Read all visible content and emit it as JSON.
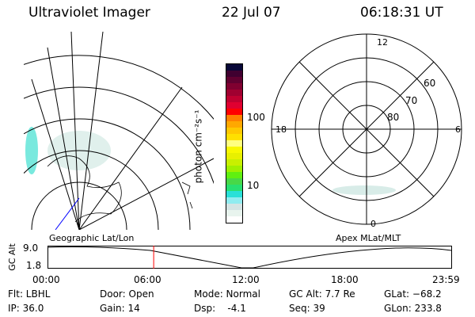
{
  "header": {
    "title": "Ultraviolet Imager",
    "date": "22 Jul 07",
    "time": "06:18:31 UT"
  },
  "colorbar": {
    "unit_label": "photon cm⁻²s⁻¹",
    "ticks": [
      "100",
      "10"
    ],
    "colors": [
      "#ffffff",
      "#e8f4ee",
      "#d4e4e4",
      "#90ecf0",
      "#28e0d8",
      "#28e070",
      "#48d848",
      "#60f010",
      "#a0f000",
      "#c8f000",
      "#e8f000",
      "#f8f800",
      "#ffff80",
      "#ffe000",
      "#ffc800",
      "#ffa800",
      "#ff8000",
      "#ff0000",
      "#e00030",
      "#c00030",
      "#a00030",
      "#800030",
      "#600030",
      "#400030",
      "#080838"
    ]
  },
  "polar": {
    "mlt_labels": {
      "top": "12",
      "left": "18",
      "right": "6",
      "bottom": "0"
    },
    "lat_labels": [
      "60",
      "70",
      "80"
    ]
  },
  "timeline": {
    "left_label": "Geographic Lat/Lon",
    "right_label": "Apex MLat/MLT",
    "ylabel": "GC Alt",
    "yticks": [
      "9.0",
      "1.8"
    ],
    "xticks": [
      "00:00",
      "06:00",
      "12:00",
      "18:00",
      "23:59"
    ],
    "current_time_fraction": 0.263,
    "marker_color": "#ff0000"
  },
  "status": {
    "filter": "Flt: LBHL",
    "ip": "IP: 36.0",
    "door": "Door: Open",
    "gain": "Gain: 14",
    "mode": "Mode: Normal",
    "dsp": "Dsp:    -4.1",
    "gc_alt": "GC Alt: 7.7 Re",
    "seq": "Seq: 39",
    "glat": "GLat: −68.2",
    "glon": "GLon: 233.8"
  }
}
